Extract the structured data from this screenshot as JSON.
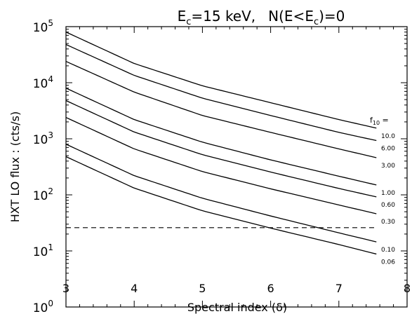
{
  "chart_data": {
    "type": "line",
    "title_parts": {
      "e": "E",
      "c_sub": "c",
      "eq15": "=15 keV,",
      "n_open": "N(E<E",
      "c_sub2": "c",
      "close_eq0": ")=0"
    },
    "xlabel": "Spectral index (δ)",
    "ylabel": "HXT LO flux : (cts/s)",
    "x_scale": "linear",
    "y_scale": "log",
    "xlim": [
      3,
      8
    ],
    "ylim": [
      1,
      100000
    ],
    "x_ticks": [
      {
        "value": 3,
        "label": "3"
      },
      {
        "value": 4,
        "label": "4"
      },
      {
        "value": 5,
        "label": "5"
      },
      {
        "value": 6,
        "label": "6"
      },
      {
        "value": 7,
        "label": "7"
      },
      {
        "value": 8,
        "label": "8"
      }
    ],
    "y_ticks": [
      {
        "value": 1,
        "base": "10",
        "exp": "0"
      },
      {
        "value": 10,
        "base": "10",
        "exp": "1"
      },
      {
        "value": 100,
        "base": "10",
        "exp": "2"
      },
      {
        "value": 1000,
        "base": "10",
        "exp": "3"
      },
      {
        "value": 10000,
        "base": "10",
        "exp": "4"
      },
      {
        "value": 100000,
        "base": "10",
        "exp": "5"
      }
    ],
    "legend_title": {
      "main": "f",
      "sub": "10",
      "suffix": " ="
    },
    "series": [
      {
        "name": "10.0",
        "x": [
          3,
          4,
          5,
          6,
          7,
          7.55
        ],
        "y": [
          80000,
          22000,
          8800,
          4400,
          2200,
          1550
        ]
      },
      {
        "name": "6.00",
        "x": [
          3,
          4,
          5,
          6,
          7,
          7.55
        ],
        "y": [
          48000,
          13500,
          5300,
          2600,
          1300,
          930
        ]
      },
      {
        "name": "3.00",
        "x": [
          3,
          4,
          5,
          6,
          7,
          7.55
        ],
        "y": [
          24000,
          6800,
          2600,
          1300,
          660,
          460
        ]
      },
      {
        "name": "1.00",
        "x": [
          3,
          4,
          5,
          6,
          7,
          7.55
        ],
        "y": [
          8000,
          2200,
          870,
          420,
          215,
          150
        ]
      },
      {
        "name": "0.60",
        "x": [
          3,
          4,
          5,
          6,
          7,
          7.55
        ],
        "y": [
          4800,
          1320,
          520,
          255,
          130,
          92
        ]
      },
      {
        "name": "0.30",
        "x": [
          3,
          4,
          5,
          6,
          7,
          7.55
        ],
        "y": [
          2400,
          660,
          260,
          128,
          66,
          46
        ]
      },
      {
        "name": "0.10",
        "x": [
          3,
          4,
          5,
          6,
          7,
          7.55
        ],
        "y": [
          800,
          220,
          87,
          42,
          21,
          14.5
        ]
      },
      {
        "name": "0.06",
        "x": [
          3,
          4,
          5,
          6,
          7,
          7.55
        ],
        "y": [
          480,
          132,
          52,
          25.5,
          13,
          8.8
        ]
      }
    ],
    "threshold": {
      "y": 26,
      "x_start": 3,
      "x_end": 7.55,
      "style": "dashed"
    },
    "grid": false
  }
}
